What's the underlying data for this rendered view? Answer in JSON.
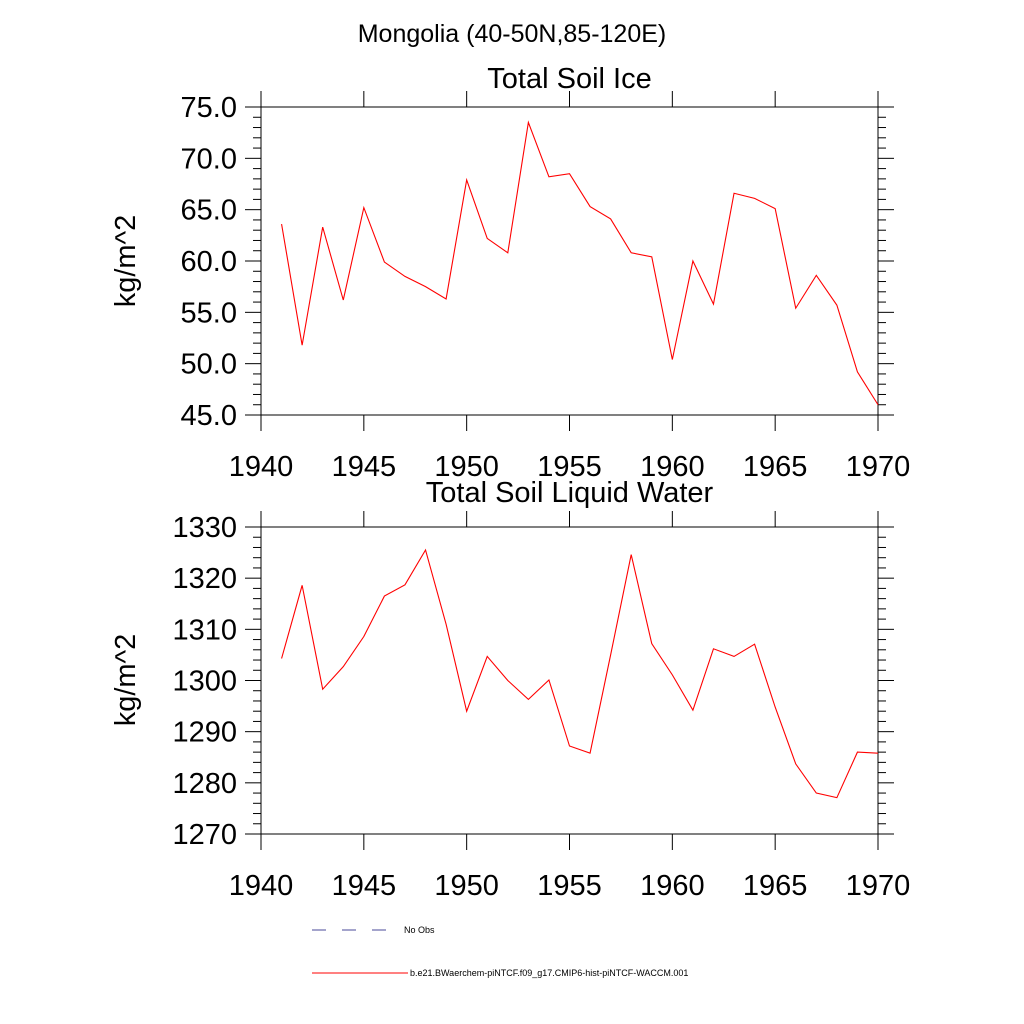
{
  "figure": {
    "title": "Mongolia (40-50N,85-120E)"
  },
  "colors": {
    "model_line": "#ff0000",
    "obs_line": "#4a4a9a",
    "axis": "#000000"
  },
  "legend": {
    "placement": "bottom-center",
    "items": [
      {
        "label": "No Obs",
        "style": "dashed",
        "color": "#4a4a9a"
      },
      {
        "label": "b.e21.BWaerchem-piNTCF.f09_g17.CMIP6-hist-piNTCF-WACCM.001",
        "style": "solid",
        "color": "#ff0000"
      }
    ]
  },
  "chart_data": [
    {
      "type": "line",
      "title": "Total Soil Ice",
      "xlabel": "",
      "ylabel": "kg/m^2",
      "xlim": [
        1940,
        1970
      ],
      "ylim": [
        45,
        75
      ],
      "x_ticks": [
        1940,
        1945,
        1950,
        1955,
        1960,
        1965,
        1970
      ],
      "x_tick_labels": [
        "1940",
        "1945",
        "1950",
        "1955",
        "1960",
        "1965",
        "1970"
      ],
      "y_ticks": [
        45,
        50,
        55,
        60,
        65,
        70,
        75
      ],
      "y_tick_labels": [
        "45.0",
        "50.0",
        "55.0",
        "60.0",
        "65.0",
        "70.0",
        "75.0"
      ],
      "grid": false,
      "series": [
        {
          "name": "b.e21.BWaerchem-piNTCF.f09_g17.CMIP6-hist-piNTCF-WACCM.001",
          "color": "#ff0000",
          "x": [
            1941,
            1942,
            1943,
            1944,
            1945,
            1946,
            1947,
            1948,
            1949,
            1950,
            1951,
            1952,
            1953,
            1954,
            1955,
            1956,
            1957,
            1958,
            1959,
            1960,
            1961,
            1962,
            1963,
            1964,
            1965,
            1966,
            1967,
            1968,
            1969,
            1970
          ],
          "values": [
            63.6,
            51.8,
            63.3,
            56.2,
            65.2,
            59.9,
            58.5,
            57.5,
            56.3,
            67.9,
            62.2,
            60.8,
            73.5,
            68.2,
            68.5,
            65.3,
            64.1,
            60.8,
            60.4,
            50.4,
            60.0,
            55.8,
            66.6,
            66.1,
            65.1,
            55.4,
            58.6,
            55.7,
            49.2,
            46.0
          ]
        }
      ]
    },
    {
      "type": "line",
      "title": "Total Soil Liquid Water",
      "xlabel": "",
      "ylabel": "kg/m^2",
      "xlim": [
        1940,
        1970
      ],
      "ylim": [
        1270,
        1330
      ],
      "x_ticks": [
        1940,
        1945,
        1950,
        1955,
        1960,
        1965,
        1970
      ],
      "x_tick_labels": [
        "1940",
        "1945",
        "1950",
        "1955",
        "1960",
        "1965",
        "1970"
      ],
      "y_ticks": [
        1270,
        1280,
        1290,
        1300,
        1310,
        1320,
        1330
      ],
      "y_tick_labels": [
        "1270",
        "1280",
        "1290",
        "1300",
        "1310",
        "1320",
        "1330"
      ],
      "grid": false,
      "series": [
        {
          "name": "b.e21.BWaerchem-piNTCF.f09_g17.CMIP6-hist-piNTCF-WACCM.001",
          "color": "#ff0000",
          "x": [
            1941,
            1942,
            1943,
            1944,
            1945,
            1946,
            1947,
            1948,
            1949,
            1950,
            1951,
            1952,
            1953,
            1954,
            1955,
            1956,
            1957,
            1958,
            1959,
            1960,
            1961,
            1962,
            1963,
            1964,
            1965,
            1966,
            1967,
            1968,
            1969,
            1970
          ],
          "values": [
            1304.3,
            1318.6,
            1298.3,
            1302.7,
            1308.6,
            1316.5,
            1318.7,
            1325.5,
            1311.0,
            1294.0,
            1304.7,
            1300.0,
            1296.3,
            1300.1,
            1287.2,
            1285.8,
            1305.0,
            1324.6,
            1307.2,
            1301.1,
            1294.2,
            1306.2,
            1304.7,
            1307.1,
            1294.8,
            1283.7,
            1278.0,
            1277.1,
            1286.0,
            1285.8
          ]
        }
      ]
    }
  ]
}
